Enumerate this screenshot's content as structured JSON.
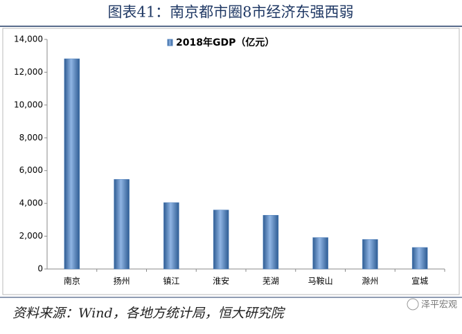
{
  "chart_data": {
    "type": "bar",
    "title": "图表41：南京都市圈8市经济东强西弱",
    "categories": [
      "南京",
      "扬州",
      "镇江",
      "淮安",
      "芜湖",
      "马鞍山",
      "滁州",
      "宣城"
    ],
    "series": [
      {
        "name": "2018年GDP（亿元）",
        "color": "#4f81bd",
        "values": [
          12820,
          5466,
          4050,
          3601,
          3279,
          1918,
          1802,
          1312
        ]
      }
    ],
    "ylim": [
      0,
      14000
    ],
    "yticks": [
      0,
      {
        "value": 2000,
        "label": "2,000"
      },
      {
        "value": 4000,
        "label": "4,000"
      },
      {
        "value": 6000,
        "label": "6,000"
      },
      {
        "value": 8000,
        "label": "8,000"
      },
      {
        "value": 10000,
        "label": "10,000"
      },
      {
        "value": 12000,
        "label": "12,000"
      },
      {
        "value": 14000,
        "label": "14,000"
      }
    ],
    "grid": false,
    "legend": "top",
    "source": "资料来源：Wind，各地方统计局，恒大研究院",
    "watermark": "泽平宏观"
  }
}
